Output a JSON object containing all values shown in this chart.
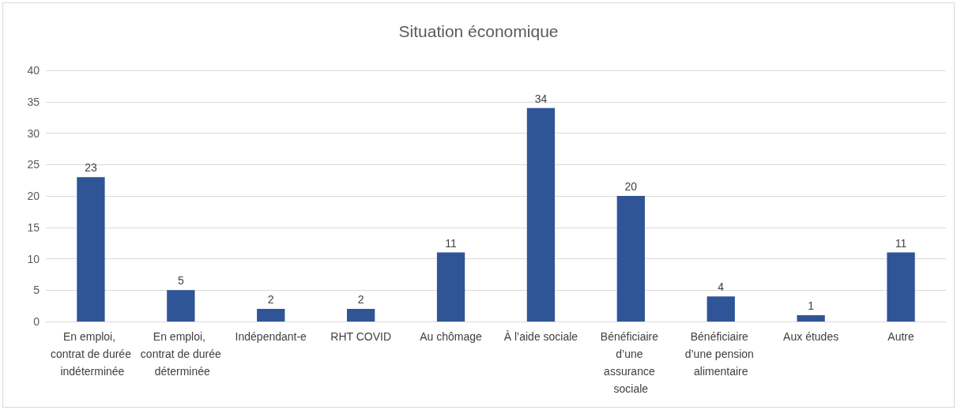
{
  "chart_data": {
    "type": "bar",
    "title": "Situation économique",
    "categories": [
      "En emploi, contrat de durée indéterminée",
      "En emploi, contrat de durée déterminée",
      "Indépendant-e",
      "RHT COVID",
      "Au chômage",
      "À l’aide sociale",
      "Bénéficiaire d’une assurance sociale",
      "Bénéficiaire d’une pension alimentaire",
      "Aux études",
      "Autre"
    ],
    "values": [
      23,
      5,
      2,
      2,
      11,
      34,
      20,
      4,
      1,
      11
    ],
    "color": "#2f5597",
    "ylim": [
      0,
      40
    ],
    "yticks": [
      0,
      5,
      10,
      15,
      20,
      25,
      30,
      35,
      40
    ],
    "grid": "y",
    "data_labels": true
  }
}
